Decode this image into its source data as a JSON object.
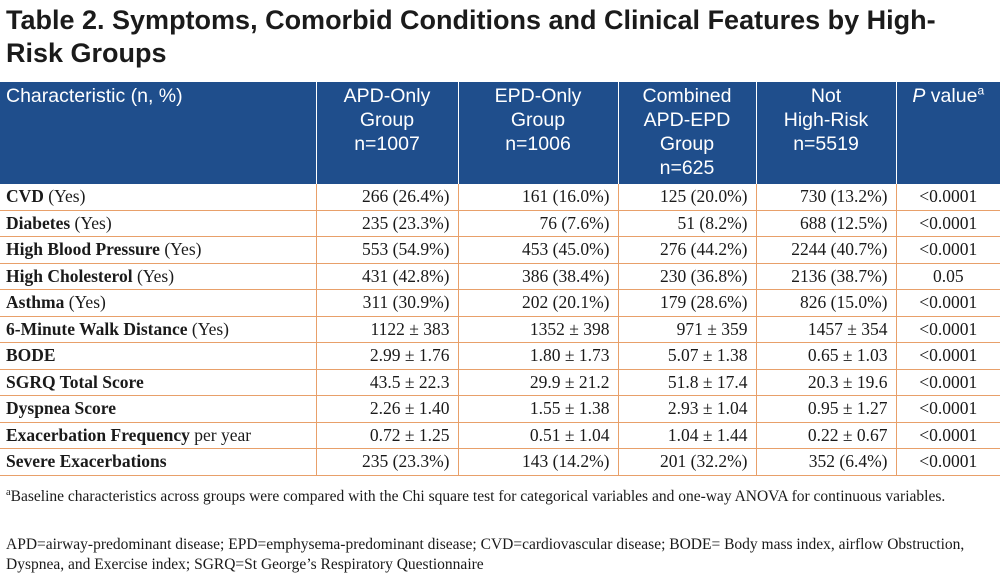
{
  "title": "Table 2. Symptoms, Comorbid Conditions and Clinical Features by High-Risk Groups",
  "header": {
    "characteristic": "Characteristic (n, %)",
    "apd": [
      "APD-Only",
      "Group",
      "n=1007"
    ],
    "epd": [
      "EPD-Only",
      "Group",
      "n=1006"
    ],
    "combined": [
      "Combined",
      "APD-EPD",
      "Group",
      "n=625"
    ],
    "not_high_risk": [
      "Not",
      "High-Risk",
      "n=5519"
    ],
    "p_value": "P",
    "p_value_suffix": " value",
    "p_value_sup": "a"
  },
  "rows": [
    {
      "label": "CVD",
      "qualifier": " (Yes)",
      "apd": "266 (26.4%)",
      "epd": "161 (16.0%)",
      "combined": "125 (20.0%)",
      "not_high_risk": "730 (13.2%)",
      "p": "<0.0001"
    },
    {
      "label": "Diabetes",
      "qualifier": " (Yes)",
      "apd": "235 (23.3%)",
      "epd": "76 (7.6%)",
      "combined": "51 (8.2%)",
      "not_high_risk": "688 (12.5%)",
      "p": "<0.0001"
    },
    {
      "label": "High Blood Pressure",
      "qualifier": " (Yes)",
      "apd": "553 (54.9%)",
      "epd": "453 (45.0%)",
      "combined": "276 (44.2%)",
      "not_high_risk": "2244 (40.7%)",
      "p": "<0.0001"
    },
    {
      "label": "High Cholesterol",
      "qualifier": " (Yes)",
      "apd": "431 (42.8%)",
      "epd": "386 (38.4%)",
      "combined": "230 (36.8%)",
      "not_high_risk": "2136 (38.7%)",
      "p": "0.05"
    },
    {
      "label": "Asthma",
      "qualifier": " (Yes)",
      "apd": "311 (30.9%)",
      "epd": "202 (20.1%)",
      "combined": "179 (28.6%)",
      "not_high_risk": "826 (15.0%)",
      "p": "<0.0001"
    },
    {
      "label": "6-Minute Walk Distance",
      "qualifier": " (Yes)",
      "apd": "1122 ± 383",
      "epd": "1352 ± 398",
      "combined": "971 ± 359",
      "not_high_risk": "1457 ± 354",
      "p": "<0.0001"
    },
    {
      "label": "BODE",
      "qualifier": "",
      "apd": "2.99 ± 1.76",
      "epd": "1.80 ± 1.73",
      "combined": "5.07 ± 1.38",
      "not_high_risk": "0.65 ± 1.03",
      "p": "<0.0001"
    },
    {
      "label": "SGRQ Total Score",
      "qualifier": "",
      "apd": "43.5 ± 22.3",
      "epd": "29.9 ± 21.2",
      "combined": "51.8 ± 17.4",
      "not_high_risk": "20.3 ± 19.6",
      "p": "<0.0001"
    },
    {
      "label": "Dyspnea Score",
      "qualifier": "",
      "apd": "2.26 ± 1.40",
      "epd": "1.55 ± 1.38",
      "combined": "2.93 ± 1.04",
      "not_high_risk": "0.95 ± 1.27",
      "p": "<0.0001"
    },
    {
      "label": "Exacerbation Frequency",
      "qualifier": " per year",
      "apd": "0.72 ± 1.25",
      "epd": "0.51 ± 1.04",
      "combined": "1.04 ± 1.44",
      "not_high_risk": "0.22 ± 0.67",
      "p": "<0.0001"
    },
    {
      "label": "Severe Exacerbations",
      "qualifier": "",
      "apd": "235 (23.3%)",
      "epd": "143 (14.2%)",
      "combined": "201 (32.2%)",
      "not_high_risk": "352 (6.4%)",
      "p": "<0.0001"
    }
  ],
  "footnote": {
    "marker": "a",
    "text": "Baseline characteristics across groups were compared with the Chi square test for categorical variables and one-way ANOVA for continuous variables."
  },
  "abbreviations": "APD=airway-predominant disease; EPD=emphysema-predominant disease; CVD=cardiovascular disease; BODE= Body mass index, airflow Obstruction, Dyspnea, and Exercise index; SGRQ=St George’s Respiratory Questionnaire",
  "colors": {
    "header_bg": "#1f4e8c",
    "rule": "#e8a06a"
  }
}
